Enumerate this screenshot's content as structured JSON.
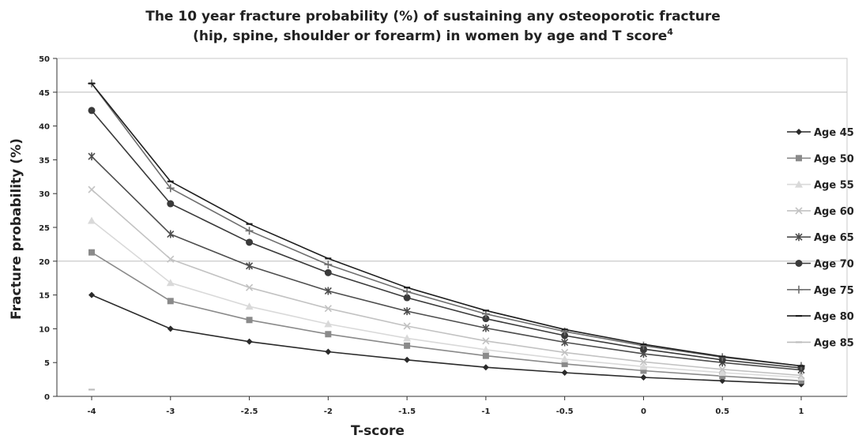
{
  "chart_data": {
    "type": "line",
    "title_line1": "The 10 year fracture probability (%) of sustaining any osteoporotic fracture",
    "title_line2": "(hip, spine, shoulder or forearm) in women by age and T score",
    "title_superscript": "4",
    "xlabel": "T-score",
    "ylabel": "Fracture probability (%)",
    "categories": [
      "-4",
      "-3",
      "-2.5",
      "-2",
      "-1.5",
      "-1",
      "-0.5",
      "0",
      "0.5",
      "1"
    ],
    "ylim": [
      0,
      50
    ],
    "yticks": [
      0,
      5,
      10,
      15,
      20,
      25,
      30,
      35,
      40,
      45,
      50
    ],
    "grid": "horizontal",
    "legend_position": "right",
    "series": [
      {
        "name": "Age 45",
        "color": "#2a2a2a",
        "marker": "diamond",
        "values": [
          15.0,
          10.0,
          8.1,
          6.6,
          5.4,
          4.3,
          3.5,
          2.8,
          2.3,
          1.8
        ]
      },
      {
        "name": "Age 50",
        "color": "#8a8a8a",
        "marker": "square",
        "values": [
          21.3,
          14.1,
          11.3,
          9.2,
          7.5,
          6.0,
          4.8,
          3.8,
          3.0,
          2.3
        ]
      },
      {
        "name": "Age 55",
        "color": "#d9d9d9",
        "marker": "triangle",
        "values": [
          26.0,
          16.8,
          13.3,
          10.7,
          8.6,
          6.9,
          5.5,
          4.4,
          3.5,
          2.8
        ]
      },
      {
        "name": "Age 60",
        "color": "#c2c2c2",
        "marker": "x",
        "values": [
          30.6,
          20.3,
          16.1,
          13.0,
          10.4,
          8.2,
          6.5,
          5.1,
          4.0,
          3.1
        ]
      },
      {
        "name": "Age 65",
        "color": "#4d4d4d",
        "marker": "star",
        "values": [
          35.5,
          24.0,
          19.3,
          15.6,
          12.6,
          10.1,
          8.0,
          6.3,
          5.0,
          3.9
        ]
      },
      {
        "name": "Age 70",
        "color": "#3a3a3a",
        "marker": "circle",
        "values": [
          42.3,
          28.5,
          22.8,
          18.3,
          14.6,
          11.5,
          9.0,
          7.0,
          5.4,
          4.2
        ]
      },
      {
        "name": "Age 75",
        "color": "#6e6e6e",
        "marker": "plus",
        "values": [
          46.3,
          30.8,
          24.5,
          19.5,
          15.5,
          12.2,
          9.6,
          7.5,
          5.8,
          4.5
        ]
      },
      {
        "name": "Age 80",
        "color": "#1e1e1e",
        "marker": "dash",
        "values": [
          46.3,
          31.8,
          25.5,
          20.4,
          16.1,
          12.7,
          9.9,
          7.7,
          5.9,
          4.5
        ]
      },
      {
        "name": "Age 85",
        "color": "#bdbdbd",
        "marker": "dash",
        "values": [
          1.0,
          null,
          null,
          null,
          null,
          null,
          null,
          null,
          null,
          null
        ]
      }
    ]
  }
}
